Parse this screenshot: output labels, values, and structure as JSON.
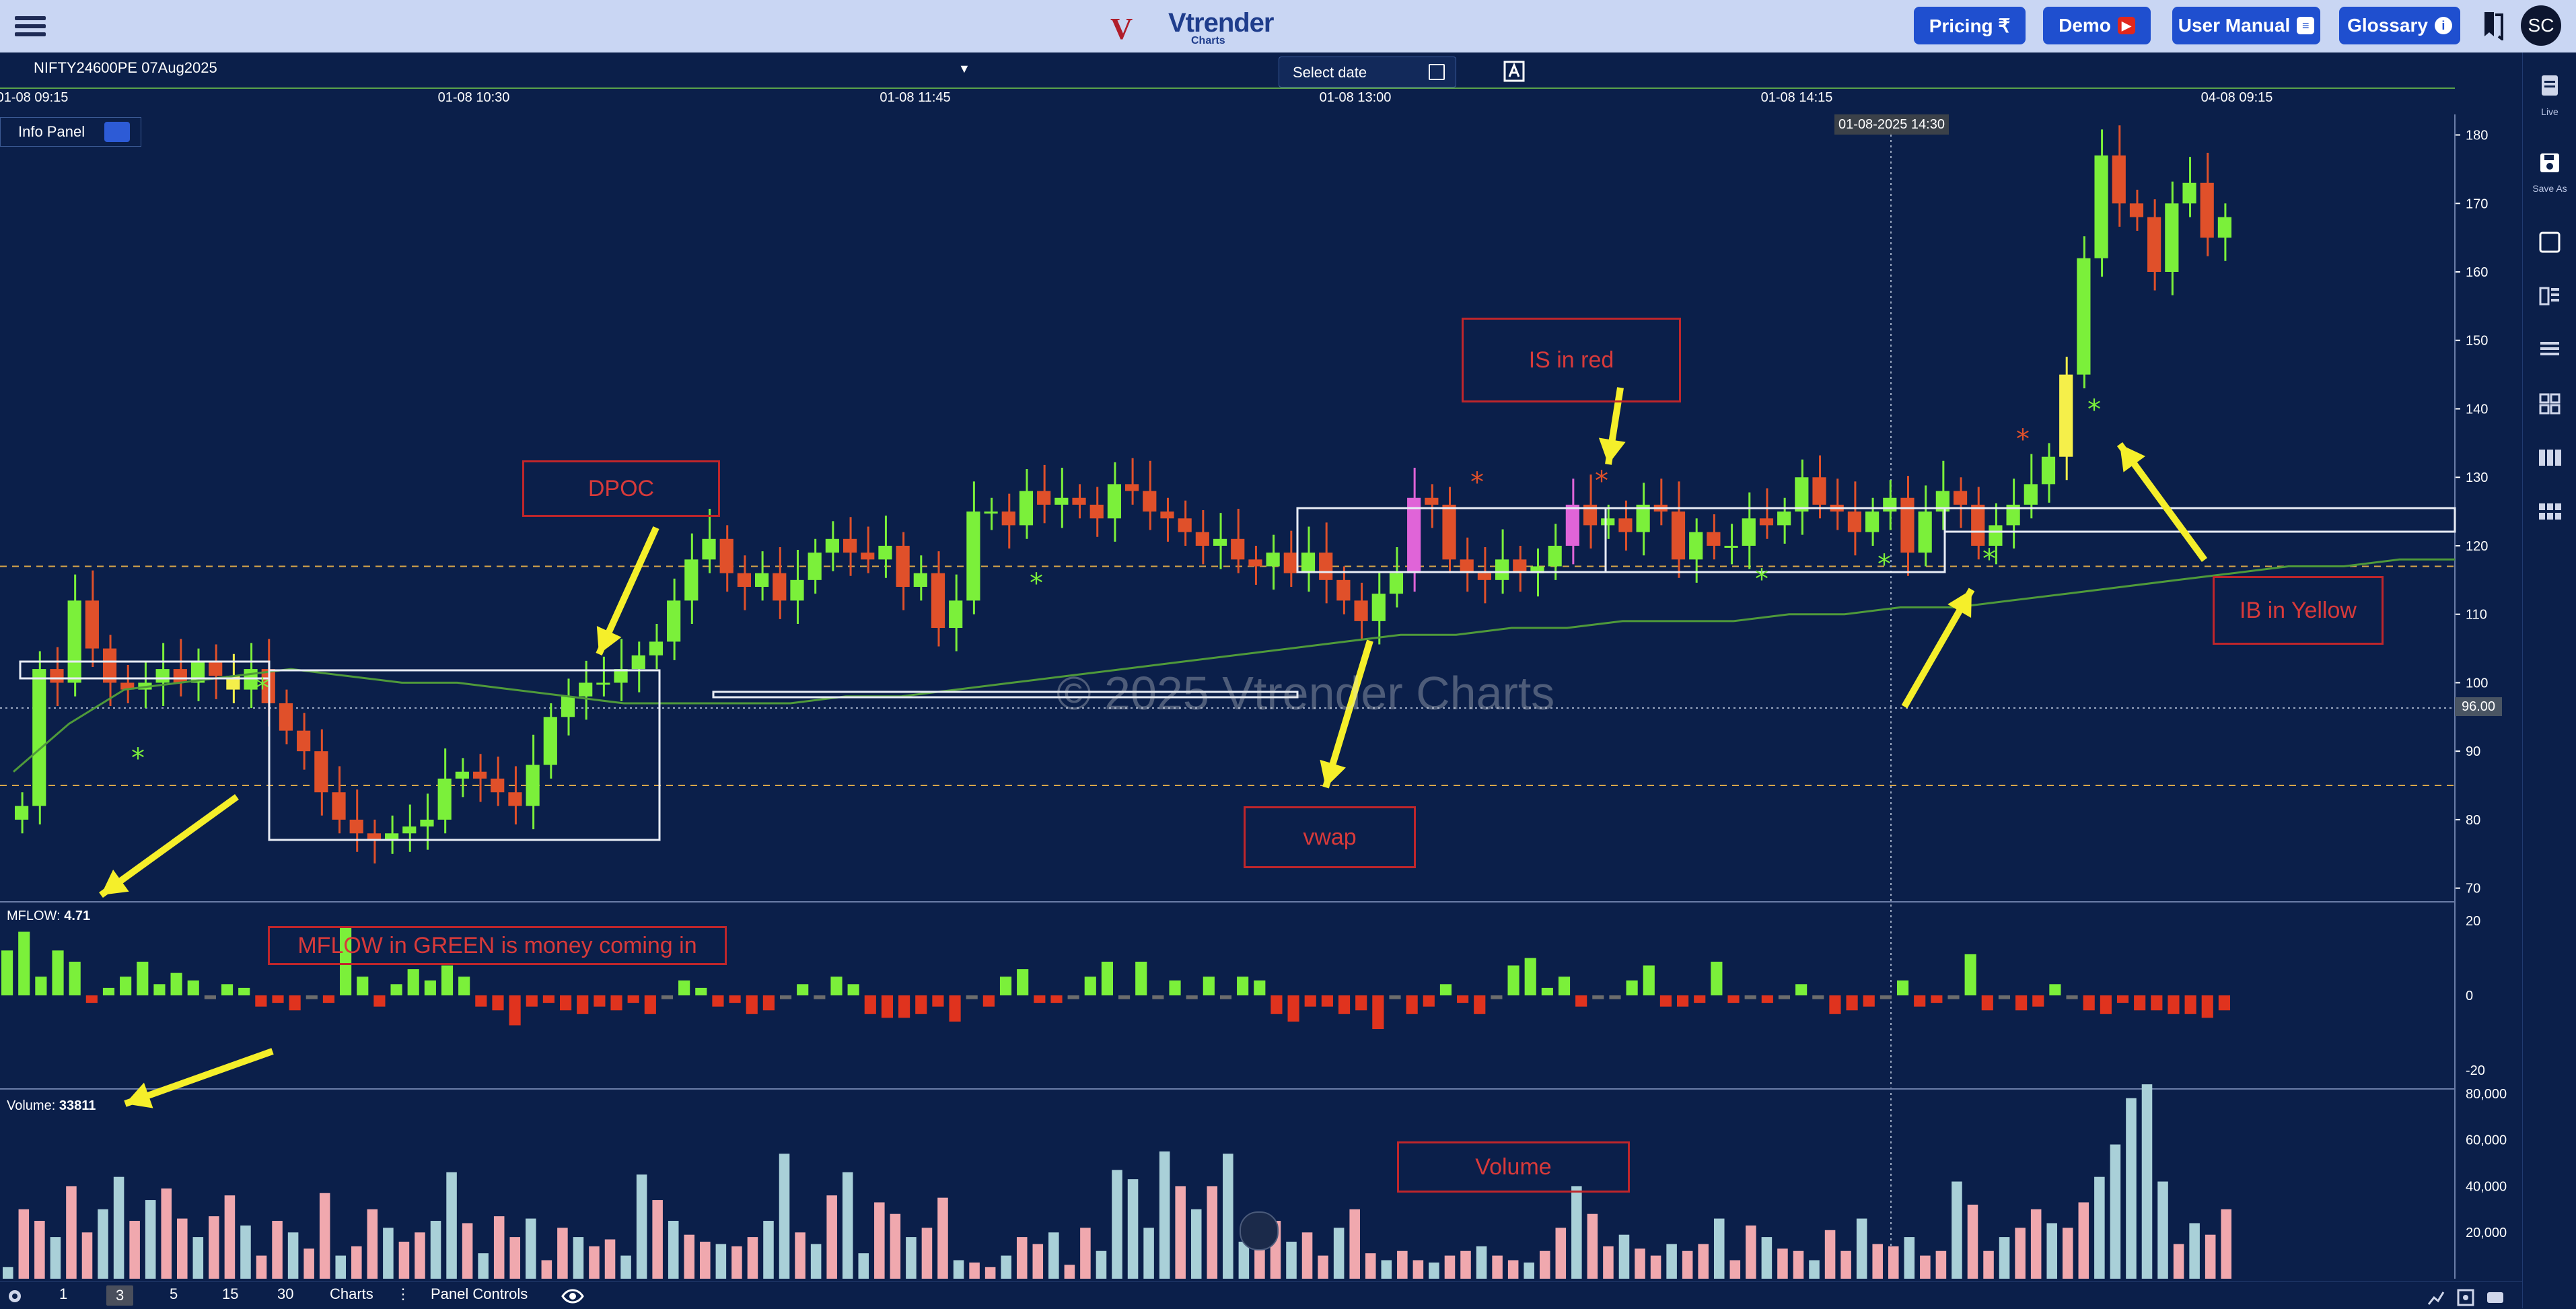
{
  "header": {
    "logo": {
      "mark": "V",
      "name": "Vtrender",
      "sub": "Charts"
    },
    "buttons": [
      {
        "label": "Pricing ₹",
        "icon": ""
      },
      {
        "label": "Demo",
        "icon": "play-icon"
      },
      {
        "label": "User Manual",
        "icon": "manual-icon"
      },
      {
        "label": "Glossary",
        "icon": "info-icon"
      }
    ],
    "avatar": "SC"
  },
  "toolbar": {
    "symbol": "NIFTY24600PE 07Aug2025",
    "date_placeholder": "Select date"
  },
  "info_panel": {
    "label": "Info Panel"
  },
  "x_axis": [
    "01-08 09:15",
    "01-08 10:30",
    "01-08 11:45",
    "01-08 13:00",
    "01-08 14:15",
    "04-08 09:15"
  ],
  "crosshair": {
    "time": "01-08-2025 14:30",
    "price": "96.00"
  },
  "watermark": "© 2025 Vtrender Charts",
  "annotations": {
    "dpoc": "DPOC",
    "is_red": "IS in red",
    "vwap": "vwap",
    "ib_yellow": "IB in Yellow",
    "mflow": "MFLOW in GREEN is money coming in",
    "volume": "Volume"
  },
  "mflow": {
    "label": "MFLOW:",
    "value": "4.71"
  },
  "volume": {
    "label": "Volume:",
    "value": "33811"
  },
  "right_sidebar": {
    "live": "Live",
    "save": "Save As"
  },
  "bottom": {
    "timeframes": [
      "1",
      "3",
      "5",
      "15",
      "30"
    ],
    "selected_timeframe": "3",
    "charts": "Charts",
    "panel_controls": "Panel Controls"
  },
  "chart_data": [
    {
      "type": "candlestick",
      "title": "",
      "y_ticks": [
        70,
        80,
        90,
        100,
        110,
        120,
        130,
        140,
        150,
        160,
        170,
        180
      ],
      "ylim": [
        68,
        183
      ],
      "closes": [
        82,
        102,
        100,
        112,
        105,
        100,
        99,
        100,
        102,
        100,
        103,
        101,
        99,
        102,
        97,
        93,
        90,
        84,
        80,
        78,
        77,
        78,
        79,
        80,
        86,
        87,
        86,
        84,
        82,
        88,
        95,
        98,
        100,
        100,
        102,
        104,
        106,
        112,
        118,
        121,
        116,
        114,
        116,
        112,
        115,
        119,
        121,
        119,
        118,
        120,
        114,
        116,
        108,
        112,
        125,
        125,
        123,
        128,
        126,
        127,
        126,
        124,
        129,
        128,
        125,
        124,
        122,
        120,
        121,
        118,
        117,
        119,
        116,
        119,
        115,
        112,
        109,
        113,
        116,
        127,
        126,
        118,
        116,
        115,
        118,
        116,
        117,
        120,
        126,
        123,
        124,
        122,
        126,
        125,
        118,
        122,
        120,
        120,
        124,
        123,
        125,
        130,
        126,
        125,
        122,
        125,
        127,
        119,
        125,
        128,
        126,
        120,
        123,
        126,
        129,
        133,
        145,
        162,
        177,
        170,
        168,
        160,
        170,
        173,
        165,
        168
      ],
      "highlight_yellow": [
        12,
        116
      ],
      "highlight_magenta": [
        79,
        88
      ],
      "vwap": [
        87,
        94,
        99,
        100,
        101,
        102,
        101,
        100,
        100,
        99,
        98,
        97,
        97,
        97,
        97,
        98,
        98,
        99,
        100,
        101,
        102,
        103,
        104,
        105,
        106,
        107,
        107,
        108,
        108,
        109,
        109,
        109,
        110,
        110,
        111,
        111,
        112,
        113,
        114,
        115,
        116,
        117,
        117,
        118,
        118
      ]
    },
    {
      "type": "bar",
      "title": "",
      "y_ticks": [
        20,
        0,
        -20
      ],
      "ylim": [
        -25,
        25
      ],
      "values": [
        12,
        17,
        5,
        12,
        9,
        -2,
        2,
        5,
        9,
        3,
        6,
        4,
        -1,
        3,
        2,
        -3,
        -2,
        -4,
        -1,
        -2,
        18,
        5,
        -3,
        3,
        7,
        4,
        8,
        5,
        -3,
        -4,
        -8,
        -3,
        -2,
        -4,
        -5,
        -3,
        -4,
        -2,
        -5,
        -1,
        4,
        2,
        -3,
        -2,
        -5,
        -4,
        -1,
        3,
        -1,
        5,
        3,
        -5,
        -6,
        -6,
        -5,
        -3,
        -7,
        -1,
        -3,
        5,
        7,
        -2,
        -2,
        -1,
        5,
        9,
        -1,
        9,
        -1,
        4,
        -1,
        5,
        -1,
        5,
        4,
        -5,
        -7,
        -3,
        -3,
        -5,
        -4,
        -9,
        -1,
        -5,
        -3,
        3,
        -2,
        -5,
        -1,
        8,
        10,
        2,
        5,
        -3,
        -1,
        -1,
        4,
        8,
        -3,
        -3,
        -2,
        9,
        -2,
        -1,
        -2,
        -1,
        3,
        -1,
        -5,
        -4,
        -3,
        -1,
        4,
        -3,
        -2,
        -1,
        11,
        -4,
        -1,
        -4,
        -3,
        3,
        -1,
        -4,
        -5,
        -2,
        -4,
        -4,
        -5,
        -5,
        -6,
        -4
      ],
      "latest_value": 4.71
    },
    {
      "type": "bar",
      "title": "",
      "y_ticks": [
        80000,
        60000,
        40000,
        20000
      ],
      "ylim": [
        0,
        82000
      ],
      "values": [
        5,
        30,
        25,
        18,
        40,
        20,
        30,
        44,
        25,
        34,
        39,
        26,
        18,
        27,
        36,
        23,
        10,
        25,
        20,
        13,
        37,
        10,
        14,
        30,
        22,
        16,
        20,
        25,
        46,
        24,
        11,
        27,
        18,
        26,
        8,
        22,
        18,
        14,
        17,
        10,
        45,
        34,
        25,
        19,
        16,
        15,
        14,
        18,
        25,
        54,
        20,
        15,
        36,
        46,
        11,
        33,
        28,
        18,
        22,
        35,
        8,
        7,
        5,
        10,
        18,
        15,
        20,
        6,
        22,
        12,
        47,
        43,
        22,
        55,
        40,
        30,
        40,
        54,
        16,
        24,
        25,
        16,
        20,
        10,
        22,
        30,
        11,
        8,
        12,
        8,
        7,
        10,
        12,
        14,
        10,
        8,
        7,
        12,
        22,
        40,
        28,
        14,
        19,
        13,
        10,
        15,
        12,
        15,
        26,
        8,
        23,
        18,
        13,
        12,
        8,
        21,
        12,
        26,
        15,
        14,
        18,
        10,
        12,
        42,
        32,
        12,
        18,
        22,
        30,
        24,
        22,
        33,
        44,
        58,
        78,
        84,
        42,
        15,
        24,
        19,
        30
      ],
      "latest_value": 33811
    }
  ]
}
